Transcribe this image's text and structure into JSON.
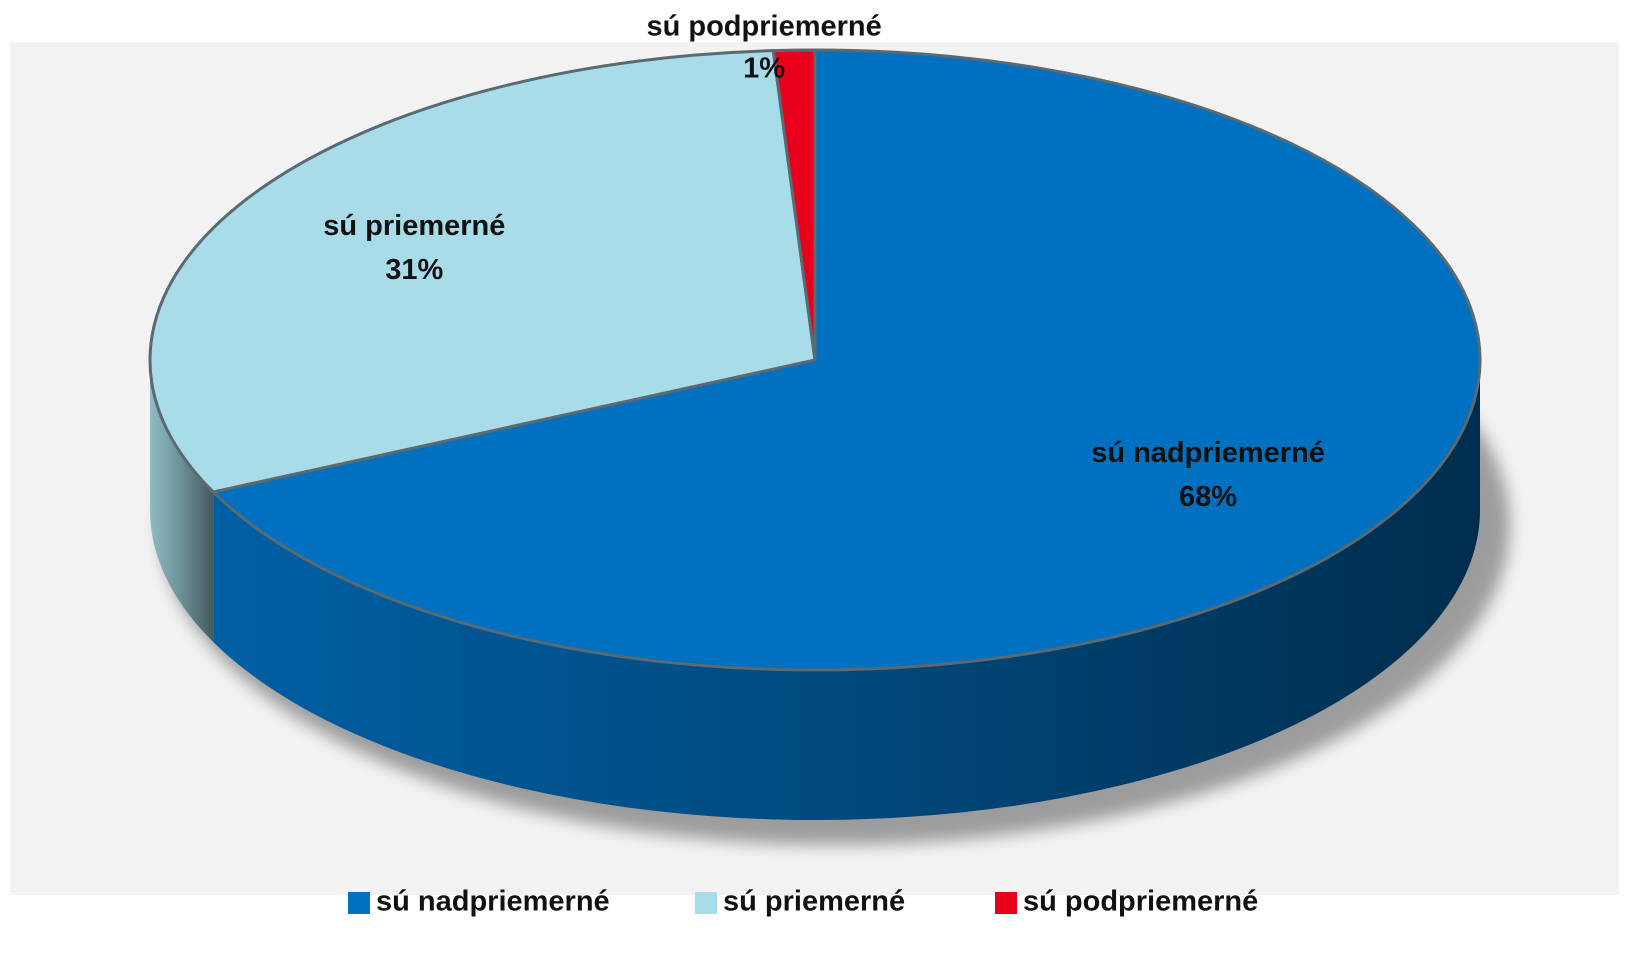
{
  "chart_data": {
    "type": "pie",
    "categories": [
      "sú nadpriemerné",
      "sú priemerné",
      "sú podpriemerné"
    ],
    "values": [
      68,
      31,
      1
    ],
    "value_labels": [
      "68%",
      "31%",
      "1%"
    ],
    "colors": [
      "#0070c0",
      "#a8dce8",
      "#e8001c"
    ],
    "legend": "bottom"
  }
}
